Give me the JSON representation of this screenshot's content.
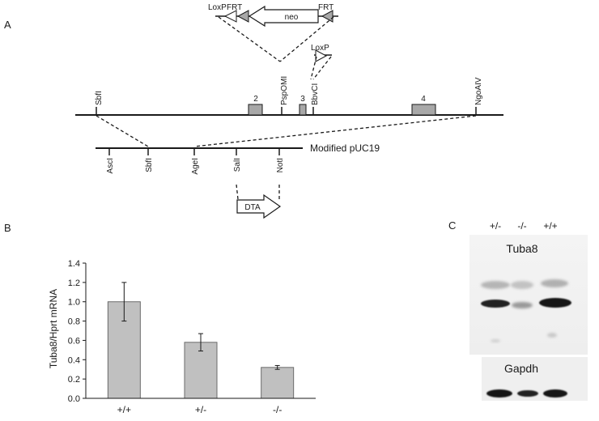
{
  "panel_a": {
    "letter": "A",
    "cassette": {
      "loxp": "LoxP",
      "frt_left": "FRT",
      "neo": "neo",
      "frt_right": "FRT"
    },
    "loxp_single": "LoxP",
    "sites": {
      "sbfi": "SbfI",
      "pspomi": "PspOMI",
      "bbvci": "BbvCI",
      "ngoaiv": "NgoAIV"
    },
    "exons": [
      "2",
      "3",
      "4"
    ],
    "vector": {
      "label": "Modified pUC19",
      "sites": [
        "AscI",
        "SbfI",
        "AgeI",
        "SalI",
        "NotI"
      ]
    },
    "dta": "DTA"
  },
  "panel_b": {
    "letter": "B",
    "chart_data": {
      "type": "bar",
      "categories": [
        "+/+",
        "+/-",
        "-/-"
      ],
      "values": [
        1.0,
        0.58,
        0.32
      ],
      "errors": [
        0.2,
        0.09,
        0.02
      ],
      "ylabel": "Tuba8/Hprt mRNA",
      "ylim": [
        0,
        1.4
      ],
      "yticks": [
        "0.0",
        "0.2",
        "0.4",
        "0.6",
        "0.8",
        "1.0",
        "1.2",
        "1.4"
      ],
      "bar_color": "#c0c0c0",
      "grid": false,
      "legend": "none"
    }
  },
  "panel_c": {
    "letter": "C",
    "lanes": [
      "+/-",
      "-/-",
      "+/+"
    ],
    "blot_top_label": "Tuba8",
    "blot_bottom_label": "Gapdh"
  }
}
